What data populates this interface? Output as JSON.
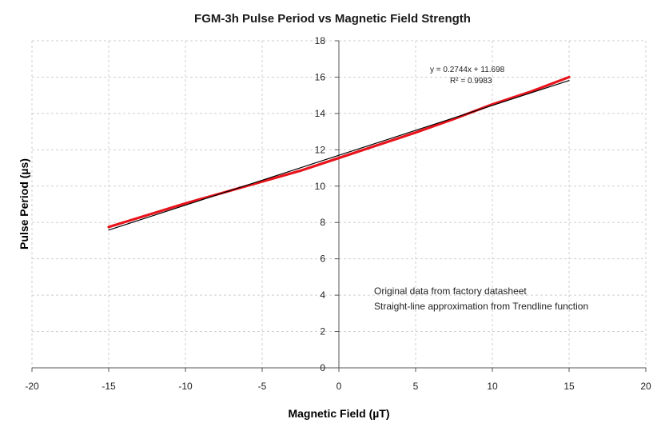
{
  "chart_data": {
    "type": "line",
    "title": "FGM-3h Pulse Period vs Magnetic Field Strength",
    "xlabel": "Magnetic Field (µT)",
    "ylabel": "Pulse Period (µs)",
    "xlim": [
      -20,
      20
    ],
    "ylim": [
      0,
      18
    ],
    "x_ticks": [
      -20,
      -15,
      -10,
      -5,
      0,
      5,
      10,
      15,
      20
    ],
    "y_ticks": [
      0,
      2,
      4,
      6,
      8,
      10,
      12,
      14,
      16,
      18
    ],
    "grid": true,
    "series": [
      {
        "color": "#e8141b",
        "x": [
          -15,
          -12.5,
          -10,
          -7.5,
          -5,
          -2.5,
          0,
          2.5,
          5,
          7.5,
          10,
          12.5,
          15
        ],
        "y": [
          7.75,
          8.4,
          9.05,
          9.65,
          10.25,
          10.85,
          11.55,
          12.25,
          12.95,
          13.7,
          14.5,
          15.2,
          16.0
        ]
      },
      {
        "color": "#000000",
        "x": [
          -15,
          15
        ],
        "y": [
          7.582,
          15.814
        ]
      }
    ],
    "annotations": {
      "equation": "y = 0.2744x + 11.698",
      "r_squared": "R² = 0.9983",
      "note_line1": "Original data from factory datasheet",
      "note_line2": "Straight-line approximation from Trendline function"
    }
  }
}
